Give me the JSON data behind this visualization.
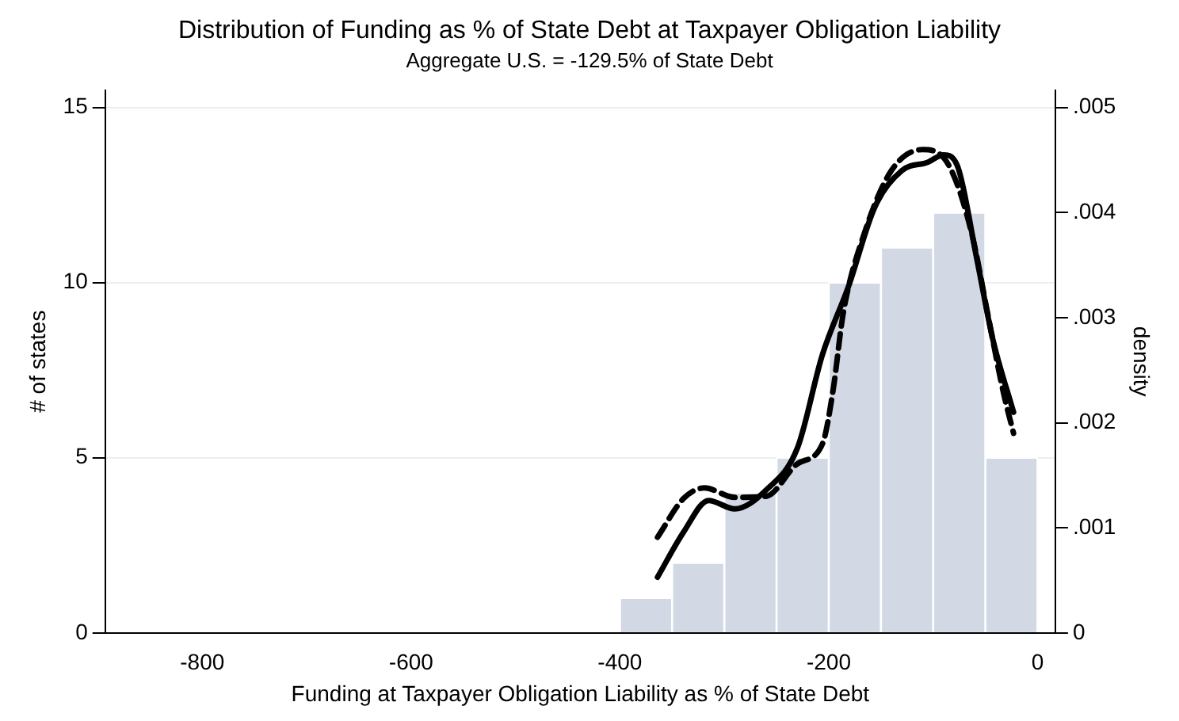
{
  "chart_data": {
    "type": "histogram",
    "title": "Distribution of Funding as % of State Debt at Taxpayer Obligation Liability",
    "subtitle": "Aggregate U.S. = -129.5% of State Debt",
    "xlabel": "Funding at Taxpayer Obligation Liability as % of State Debt",
    "ylabel": "# of states",
    "y2label": "density",
    "bins": [
      -400,
      -350,
      -300,
      -250,
      -200,
      -150,
      -100,
      -50,
      0
    ],
    "values": [
      1,
      2,
      4,
      5,
      10,
      11,
      12,
      5
    ],
    "color": "#d2d8e4",
    "series": [
      {
        "type": "line",
        "axis": "y2",
        "color": "#000000",
        "line_style": "solid",
        "x": [
          -364,
          -339,
          -315,
          -290,
          -260,
          -230,
          -206,
          -181,
          -156,
          -130,
          -105,
          -90,
          -77,
          -58,
          -43,
          -23
        ],
        "values": [
          0.00053,
          0.00096,
          0.00126,
          0.00118,
          0.00136,
          0.00176,
          0.00265,
          0.0033,
          0.00405,
          0.0044,
          0.00448,
          0.00455,
          0.00445,
          0.00355,
          0.0028,
          0.0021
        ]
      },
      {
        "type": "line",
        "axis": "y2",
        "color": "#000000",
        "line_style": "dashed",
        "x": [
          -364,
          -339,
          -319,
          -290,
          -260,
          -230,
          -206,
          -196,
          -186,
          -166,
          -140,
          -110,
          -85,
          -63,
          -48,
          -33,
          -23
        ],
        "values": [
          0.00091,
          0.00128,
          0.00138,
          0.00129,
          0.0013,
          0.00161,
          0.0018,
          0.0023,
          0.00305,
          0.0038,
          0.0044,
          0.0046,
          0.00445,
          0.0038,
          0.00305,
          0.0023,
          0.0019
        ]
      }
    ],
    "xlim": [
      -893,
      17
    ],
    "xticks": [
      -800,
      -600,
      -400,
      -200,
      0
    ],
    "ylim": [
      0,
      15.5
    ],
    "yticks": [
      0,
      5,
      10,
      15
    ],
    "y2lim": [
      0,
      0.005167
    ],
    "y2ticks": [
      {
        "value": 0,
        "label": "0"
      },
      {
        "value": 0.001,
        "label": ".001"
      },
      {
        "value": 0.002,
        "label": ".002"
      },
      {
        "value": 0.003,
        "label": ".003"
      },
      {
        "value": 0.004,
        "label": ".004"
      },
      {
        "value": 0.005,
        "label": ".005"
      }
    ],
    "grid": "y",
    "legend": false
  }
}
